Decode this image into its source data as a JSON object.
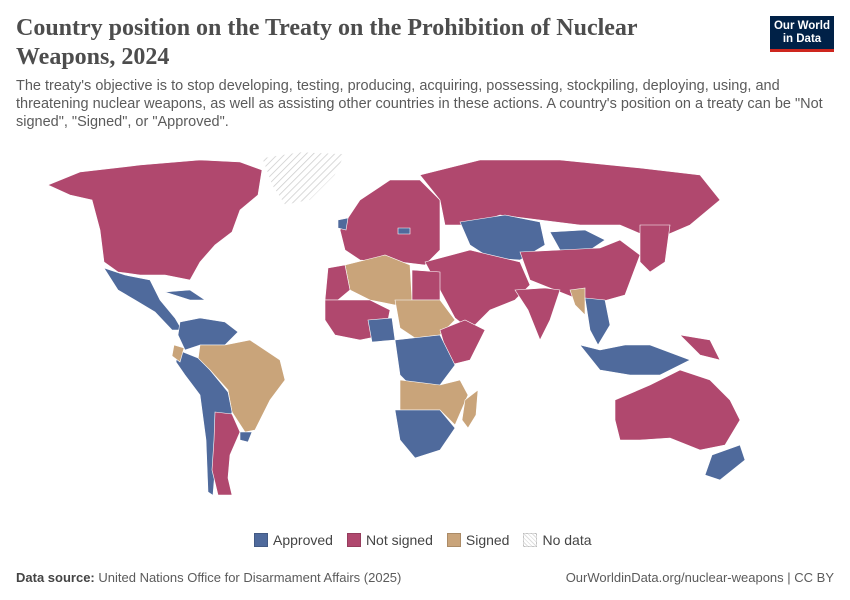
{
  "title": "Country position on the Treaty on the Prohibition of Nuclear Weapons, 2024",
  "subtitle": "The treaty's objective is to stop developing, testing, producing, acquiring, possessing, stockpiling, deploying, using, and threatening nuclear weapons, as well as assisting other countries in these actions. A country's position on a treaty can be \"Not signed\", \"Signed\", or \"Approved\".",
  "logo": "Our World in Data",
  "legend": [
    {
      "label": "Approved",
      "color": "#4f6a9c"
    },
    {
      "label": "Not signed",
      "color": "#b0486e"
    },
    {
      "label": "Signed",
      "color": "#c9a47a"
    },
    {
      "label": "No data",
      "color": "hatched"
    }
  ],
  "footer": {
    "source_label": "Data source:",
    "source": "United Nations Office for Disarmament Affairs (2025)",
    "link": "OurWorldinData.org/nuclear-weapons | CC BY"
  },
  "regions": [
    {
      "name": "North America (Canada, USA)",
      "status": "Not signed"
    },
    {
      "name": "Greenland",
      "status": "No data"
    },
    {
      "name": "Mexico & Central America",
      "status": "Approved"
    },
    {
      "name": "Cuba & Caribbean",
      "status": "Approved"
    },
    {
      "name": "Venezuela, Colombia, Guyana",
      "status": "Approved"
    },
    {
      "name": "Brazil",
      "status": "Signed"
    },
    {
      "name": "Peru, Bolivia, Paraguay, Chile",
      "status": "Approved"
    },
    {
      "name": "Ecuador",
      "status": "Signed"
    },
    {
      "name": "Argentina",
      "status": "Not signed"
    },
    {
      "name": "Uruguay",
      "status": "Approved"
    },
    {
      "name": "Europe",
      "status": "Not signed"
    },
    {
      "name": "Ireland",
      "status": "Approved"
    },
    {
      "name": "Austria",
      "status": "Approved"
    },
    {
      "name": "Russia",
      "status": "Not signed"
    },
    {
      "name": "Kazakhstan & Central Asia",
      "status": "Approved"
    },
    {
      "name": "Mongolia",
      "status": "Approved"
    },
    {
      "name": "China",
      "status": "Not signed"
    },
    {
      "name": "Middle East",
      "status": "Not signed"
    },
    {
      "name": "India",
      "status": "Not signed"
    },
    {
      "name": "Myanmar",
      "status": "Signed"
    },
    {
      "name": "Southeast Asia mainland",
      "status": "Approved"
    },
    {
      "name": "Indonesia & Philippines",
      "status": "Approved"
    },
    {
      "name": "Papua New Guinea",
      "status": "Not signed"
    },
    {
      "name": "Japan & Korea",
      "status": "Not signed"
    },
    {
      "name": "Australia",
      "status": "Not signed"
    },
    {
      "name": "New Zealand",
      "status": "Approved"
    },
    {
      "name": "North Africa (Algeria, Libya)",
      "status": "Signed"
    },
    {
      "name": "Morocco & West Sahara",
      "status": "Not signed"
    },
    {
      "name": "Egypt",
      "status": "Not signed"
    },
    {
      "name": "Sudan & Chad",
      "status": "Signed"
    },
    {
      "name": "West Africa",
      "status": "Not signed"
    },
    {
      "name": "Nigeria",
      "status": "Approved"
    },
    {
      "name": "Horn of Africa",
      "status": "Not signed"
    },
    {
      "name": "Central Africa (DR Congo)",
      "status": "Approved"
    },
    {
      "name": "Angola, Zambia, Mozambique",
      "status": "Signed"
    },
    {
      "name": "Southern Africa",
      "status": "Approved"
    },
    {
      "name": "Madagascar",
      "status": "Signed"
    }
  ]
}
